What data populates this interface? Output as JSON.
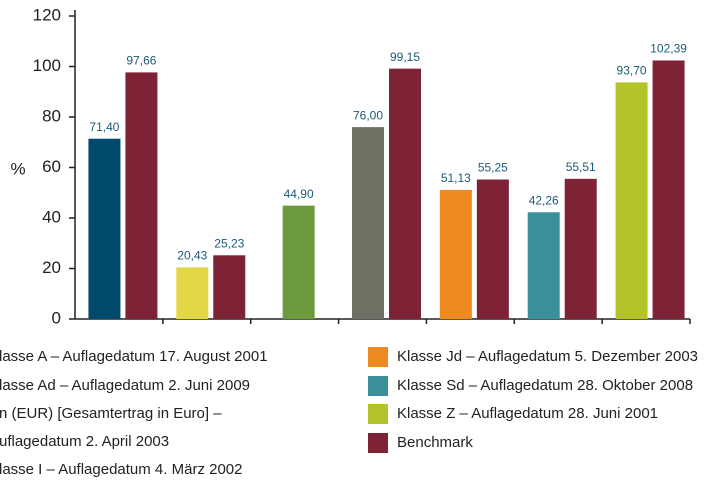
{
  "chart_data": {
    "type": "bar",
    "y_label": "%",
    "categories": [
      null,
      null,
      null,
      null,
      null,
      null,
      null
    ],
    "ylim": [
      0,
      120
    ],
    "yticks": [
      0,
      20,
      40,
      60,
      80,
      100,
      120
    ],
    "series": [
      {
        "name": [
          "lasse A – Auflagedatum 17. August 2001"
        ],
        "color": "#004a6b",
        "values": [
          71.4,
          null,
          null,
          null,
          null,
          null,
          null
        ],
        "value_labels": [
          "71,40",
          null,
          null,
          null,
          null,
          null,
          null
        ]
      },
      {
        "name": [
          "lasse Ad – Auflagedatum 2. Juni 2009"
        ],
        "color": "#e3d748",
        "values": [
          null,
          20.43,
          null,
          null,
          null,
          null,
          null
        ],
        "value_labels": [
          null,
          "20,43",
          null,
          null,
          null,
          null,
          null
        ]
      },
      {
        "name": [
          "n (EUR) [Gesamtertrag in Euro] –",
          "uflagedatum 2. April 2003"
        ],
        "color": "#6b9b3c",
        "values": [
          null,
          null,
          44.9,
          null,
          null,
          null,
          null
        ],
        "value_labels": [
          null,
          null,
          "44,90",
          null,
          null,
          null,
          null
        ]
      },
      {
        "name": [
          "lasse I – Auflagedatum 4. März 2002"
        ],
        "color": "#6f7064",
        "values": [
          null,
          null,
          null,
          76.0,
          null,
          null,
          null
        ],
        "value_labels": [
          null,
          null,
          null,
          "76,00",
          null,
          null,
          null
        ]
      },
      {
        "name": [
          "Klasse Jd – Auflagedatum 5. Dezember 2003"
        ],
        "color": "#ee8a1f",
        "values": [
          null,
          null,
          null,
          null,
          51.13,
          null,
          null
        ],
        "value_labels": [
          null,
          null,
          null,
          null,
          "51,13",
          null,
          null
        ]
      },
      {
        "name": [
          "Klasse Sd – Auflagedatum 28. Oktober 2008"
        ],
        "color": "#3b8f9b",
        "values": [
          null,
          null,
          null,
          null,
          null,
          42.26,
          null
        ],
        "value_labels": [
          null,
          null,
          null,
          null,
          null,
          "42,26",
          null
        ]
      },
      {
        "name": [
          "Klasse Z – Auflagedatum 28. Juni 2001"
        ],
        "color": "#b3c42b",
        "values": [
          null,
          null,
          null,
          null,
          null,
          null,
          93.7
        ],
        "value_labels": [
          null,
          null,
          null,
          null,
          null,
          null,
          "93,70"
        ]
      },
      {
        "name": [
          "Benchmark"
        ],
        "color": "#7e2236",
        "values": [
          97.66,
          25.23,
          null,
          99.15,
          55.25,
          55.51,
          102.39
        ],
        "value_labels": [
          "97,66",
          "25,23",
          null,
          "99,15",
          "55,25",
          "55,51",
          "102,39"
        ]
      }
    ]
  }
}
